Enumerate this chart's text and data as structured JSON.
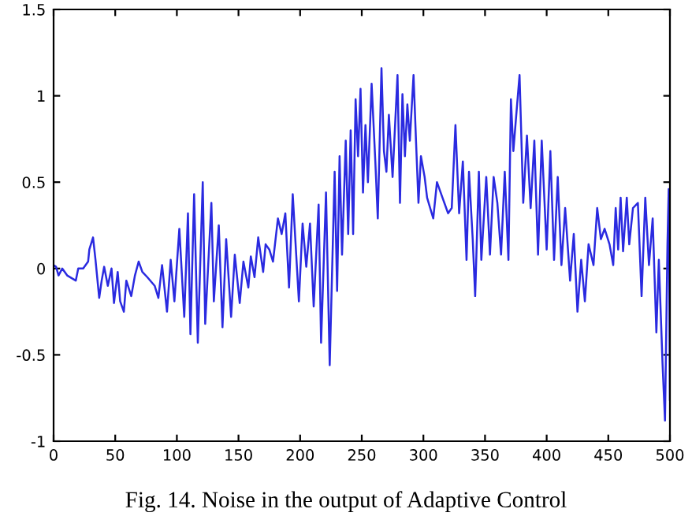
{
  "chart_data": {
    "type": "line",
    "x": [
      0,
      2,
      4,
      7,
      11,
      18,
      20,
      24,
      28,
      29,
      32,
      34,
      37,
      39,
      41,
      44,
      47,
      49,
      52,
      54,
      57,
      59,
      63,
      66,
      69,
      72,
      76,
      82,
      85,
      88,
      92,
      95,
      98,
      102,
      106,
      109,
      111,
      114,
      117,
      121,
      123,
      128,
      130,
      134,
      137,
      140,
      144,
      147,
      151,
      154,
      158,
      160,
      163,
      166,
      170,
      172,
      175,
      178,
      182,
      185,
      188,
      191,
      194,
      199,
      202,
      205,
      208,
      211,
      215,
      217,
      221,
      224,
      228,
      230,
      232,
      234,
      237,
      239,
      241,
      243,
      245,
      247,
      249,
      251,
      253,
      255,
      258,
      261,
      263,
      266,
      268,
      270,
      272,
      275,
      279,
      281,
      283,
      285,
      287,
      289,
      292,
      294,
      296,
      298,
      301,
      303,
      308,
      311,
      314,
      317,
      320,
      323,
      326,
      329,
      332,
      335,
      337,
      340,
      342,
      345,
      347,
      351,
      354,
      357,
      360,
      363,
      366,
      369,
      371,
      373,
      375,
      378,
      381,
      384,
      387,
      390,
      393,
      396,
      400,
      403,
      406,
      409,
      412,
      415,
      419,
      422,
      425,
      428,
      431,
      434,
      438,
      441,
      444,
      447,
      451,
      454,
      456,
      458,
      460,
      462,
      465,
      467,
      470,
      474,
      477,
      480,
      483,
      486,
      489,
      491,
      494,
      496,
      498,
      499,
      500
    ],
    "series": [
      {
        "color": "#2a2ae0",
        "values": [
          0.02,
          0.01,
          -0.04,
          0,
          -0.04,
          -0.07,
          0,
          0,
          0.04,
          0.11,
          0.18,
          0.05,
          -0.17,
          -0.07,
          0.01,
          -0.1,
          0,
          -0.2,
          -0.02,
          -0.19,
          -0.25,
          -0.07,
          -0.16,
          -0.04,
          0.04,
          -0.02,
          -0.05,
          -0.1,
          -0.17,
          0.02,
          -0.25,
          0.05,
          -0.19,
          0.23,
          -0.28,
          0.32,
          -0.38,
          0.43,
          -0.43,
          0.5,
          -0.32,
          0.38,
          -0.19,
          0.25,
          -0.34,
          0.17,
          -0.28,
          0.08,
          -0.2,
          0.04,
          -0.11,
          0.07,
          -0.05,
          0.18,
          -0.02,
          0.14,
          0.11,
          0.04,
          0.29,
          0.2,
          0.32,
          -0.11,
          0.43,
          -0.19,
          0.26,
          0.01,
          0.26,
          -0.22,
          0.37,
          -0.43,
          0.44,
          -0.56,
          0.56,
          -0.13,
          0.65,
          0.08,
          0.74,
          0.2,
          0.8,
          0.2,
          0.98,
          0.65,
          1.04,
          0.44,
          0.83,
          0.5,
          1.07,
          0.62,
          0.29,
          1.16,
          0.68,
          0.56,
          0.89,
          0.53,
          1.12,
          0.38,
          1.01,
          0.65,
          0.95,
          0.74,
          1.12,
          0.74,
          0.38,
          0.65,
          0.53,
          0.41,
          0.29,
          0.5,
          0.44,
          0.38,
          0.32,
          0.35,
          0.83,
          0.32,
          0.62,
          0.05,
          0.56,
          0.17,
          -0.16,
          0.56,
          0.05,
          0.53,
          0.08,
          0.53,
          0.38,
          0.08,
          0.56,
          0.05,
          0.98,
          0.68,
          0.86,
          1.12,
          0.38,
          0.77,
          0.35,
          0.74,
          0.08,
          0.74,
          0.11,
          0.68,
          0.05,
          0.53,
          0.02,
          0.35,
          -0.07,
          0.2,
          -0.25,
          0.05,
          -0.19,
          0.14,
          0.02,
          0.35,
          0.17,
          0.23,
          0.14,
          0.02,
          0.35,
          0.11,
          0.41,
          0.1,
          0.41,
          0.14,
          0.35,
          0.38,
          -0.16,
          0.41,
          0.02,
          0.29,
          -0.37,
          0.05,
          -0.55,
          -0.88,
          0.14,
          0.46,
          -0.76
        ]
      }
    ],
    "xlim": [
      0,
      500
    ],
    "ylim": [
      -1,
      1.5
    ],
    "xticks": [
      0,
      50,
      100,
      150,
      200,
      250,
      300,
      350,
      400,
      450,
      500
    ],
    "yticks": [
      -1,
      -0.5,
      0,
      0.5,
      1,
      1.5
    ],
    "grid": false,
    "legend": false,
    "marker": "none",
    "line_style": "solid",
    "annotations": [
      "Fig. 14. Noise in the output of Adaptive Control"
    ]
  }
}
